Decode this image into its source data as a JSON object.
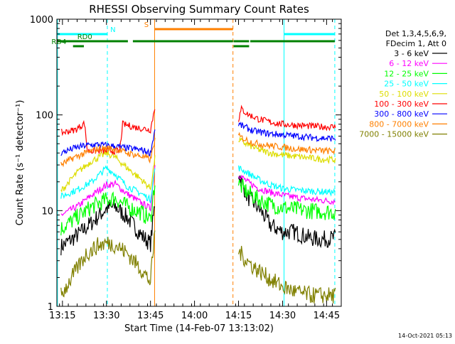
{
  "chart_data": {
    "type": "line",
    "title": "RHESSI Observing Summary Count Rates",
    "xlabel": "Start Time (14-Feb-07 13:13:02)",
    "ylabel": "Count Rate (s⁻¹ detector⁻¹)",
    "yscale": "log",
    "ylim": [
      1,
      1000
    ],
    "xlim_minutes": [
      -1.9,
      95.0
    ],
    "x_ticks": [
      {
        "label": "13:15",
        "minute": 0
      },
      {
        "label": "13:30",
        "minute": 15
      },
      {
        "label": "13:45",
        "minute": 30
      },
      {
        "label": "14:00",
        "minute": 45
      },
      {
        "label": "14:15",
        "minute": 60
      },
      {
        "label": "14:30",
        "minute": 75
      },
      {
        "label": "14:45",
        "minute": 90
      }
    ],
    "y_ticks": [
      {
        "label": "1",
        "value": 1
      },
      {
        "label": "10",
        "value": 10
      },
      {
        "label": "100",
        "value": 100
      },
      {
        "label": "1000",
        "value": 1000
      }
    ],
    "legend_header": [
      "Det 1,3,4,5,6,9,",
      "FDecim 1, Att 0"
    ],
    "series": [
      {
        "name": "3 - 6 keV",
        "color": "#000000",
        "x": [
          -0.5,
          5,
          10,
          15,
          18,
          22,
          27,
          30,
          31.5,
          58,
          60,
          63,
          67,
          71,
          75,
          79,
          84,
          88,
          93
        ],
        "values": [
          4.2,
          5.5,
          7.5,
          10.5,
          11,
          8.5,
          5.5,
          4.5,
          12,
          null,
          25,
          14,
          10.5,
          7,
          6,
          6,
          5.2,
          5,
          5.2
        ]
      },
      {
        "name": "6 - 12 keV",
        "color": "#ff00ff",
        "x": [
          -0.5,
          5,
          10,
          15,
          18,
          22,
          27,
          30,
          31.5,
          58,
          60,
          63,
          67,
          71,
          75,
          79,
          84,
          88,
          93
        ],
        "values": [
          9,
          11,
          14.5,
          18.5,
          19,
          15,
          12,
          10.5,
          30,
          null,
          24,
          20,
          17,
          15.5,
          14.5,
          13.8,
          13.2,
          12.8,
          12.5
        ]
      },
      {
        "name": "12 - 25 keV",
        "color": "#00ff00",
        "x": [
          -0.5,
          5,
          10,
          15,
          18,
          22,
          27,
          30,
          31.5,
          58,
          60,
          63,
          67,
          71,
          75,
          79,
          84,
          88,
          93
        ],
        "values": [
          6.5,
          8.5,
          11,
          13,
          13.5,
          11,
          9.5,
          8,
          20,
          null,
          19,
          15.5,
          13,
          11.5,
          10.8,
          10.3,
          10,
          9.8,
          9.7
        ]
      },
      {
        "name": "25 - 50 keV",
        "color": "#00ffff",
        "x": [
          -0.5,
          5,
          10,
          15,
          18,
          22,
          27,
          30,
          31.5,
          58,
          60,
          63,
          67,
          71,
          75,
          79,
          84,
          88,
          93
        ],
        "values": [
          14,
          16.5,
          20,
          28,
          24,
          18,
          15,
          13,
          28,
          null,
          28,
          25,
          21,
          18.5,
          17,
          16.5,
          16,
          15.8,
          15.5
        ]
      },
      {
        "name": "50 - 100 keV",
        "color": "#dddd00",
        "x": [
          -0.5,
          5,
          10,
          15,
          18,
          22,
          27,
          30,
          31.5,
          58,
          60,
          63,
          67,
          71,
          75,
          79,
          84,
          88,
          93
        ],
        "values": [
          16,
          25,
          33,
          40,
          36,
          28,
          21,
          17,
          35,
          null,
          55,
          49,
          43,
          40,
          38,
          37,
          35.5,
          34.5,
          34
        ]
      },
      {
        "name": "100 - 300 keV",
        "color": "#ff0000",
        "x": [
          -0.5,
          4.5,
          7.5,
          8.5,
          15,
          19.5,
          20.5,
          25,
          30,
          31.5,
          58,
          60,
          61,
          63,
          67,
          71,
          75,
          80,
          85,
          90,
          93
        ],
        "values": [
          65,
          70,
          82,
          42,
          42,
          42,
          80,
          74,
          70,
          120,
          null,
          90,
          115,
          102,
          90,
          84,
          80,
          78,
          76,
          75,
          75
        ]
      },
      {
        "name": "300 - 800 keV",
        "color": "#0000ff",
        "x": [
          -0.5,
          4,
          8,
          12,
          15,
          18,
          22,
          27,
          30,
          31.5,
          58,
          60,
          62,
          65,
          70,
          75,
          80,
          85,
          90,
          93
        ],
        "values": [
          40,
          45,
          48,
          49,
          48,
          47,
          45,
          43,
          40,
          70,
          null,
          80,
          75,
          68,
          64,
          62,
          60,
          58,
          57,
          57
        ]
      },
      {
        "name": "800 - 7000 keV",
        "color": "#ff8000",
        "x": [
          -0.5,
          4,
          8,
          12,
          15,
          18,
          22,
          27,
          30,
          31.5,
          58,
          60,
          62,
          65,
          70,
          75,
          80,
          85,
          90,
          93
        ],
        "values": [
          30,
          36,
          40,
          44,
          45,
          44,
          40,
          37,
          34,
          55,
          null,
          60,
          56,
          51,
          48,
          46,
          44,
          43,
          42,
          42
        ]
      },
      {
        "name": "7000 - 15000 keV",
        "color": "#808000",
        "x": [
          -0.5,
          4,
          8,
          12,
          15,
          18,
          22,
          27,
          30,
          31.5,
          58,
          60,
          62,
          65,
          70,
          75,
          80,
          85,
          90,
          93
        ],
        "values": [
          1.3,
          2.2,
          3.5,
          4.3,
          4.6,
          4.4,
          3.6,
          2.4,
          1.8,
          6,
          null,
          3.8,
          3.2,
          2.6,
          2.0,
          1.6,
          1.4,
          1.3,
          1.3,
          1.3
        ]
      }
    ],
    "markers": [
      {
        "label": "",
        "minute": -1.7,
        "color": "#00ffff",
        "style": "solid"
      },
      {
        "label": "",
        "minute": 15.3,
        "color": "#00ffff",
        "style": "dashed"
      },
      {
        "label": "",
        "minute": 31.4,
        "color": "#ff8000",
        "style": "solid"
      },
      {
        "label": "",
        "minute": 58.1,
        "color": "#ff8000",
        "style": "dashed"
      },
      {
        "label": "",
        "minute": 75.5,
        "color": "#00ffff",
        "style": "solid"
      },
      {
        "label": "",
        "minute": 92.8,
        "color": "#00ffff",
        "style": "dashed"
      }
    ],
    "state_bars": [
      {
        "label": "N",
        "color": "#00ffff",
        "level": 1,
        "segments": [
          [
            -1.7,
            15.3
          ],
          [
            75.5,
            92.8
          ]
        ],
        "label_minute": 17.2
      },
      {
        "label": "S",
        "color": "#ff8000",
        "level": 0,
        "segments": [
          [
            31.4,
            58.1
          ]
        ],
        "label_minute": 28.6
      },
      {
        "label": "RD0",
        "color": "#008000",
        "level": 2,
        "segments": [
          [
            -1.7,
            22.3
          ],
          [
            24.0,
            58.1
          ],
          [
            58.3,
            63.6
          ],
          [
            64.0,
            92.8
          ]
        ],
        "label_minute": 7.6
      },
      {
        "label": "RD4",
        "color": "#008000",
        "level": 3,
        "segments": [
          [
            3.6,
            7.3
          ],
          [
            58.3,
            63.6
          ]
        ],
        "label_minute": -1.2
      }
    ],
    "footer_timestamp": "14-Oct-2021 05:13"
  }
}
